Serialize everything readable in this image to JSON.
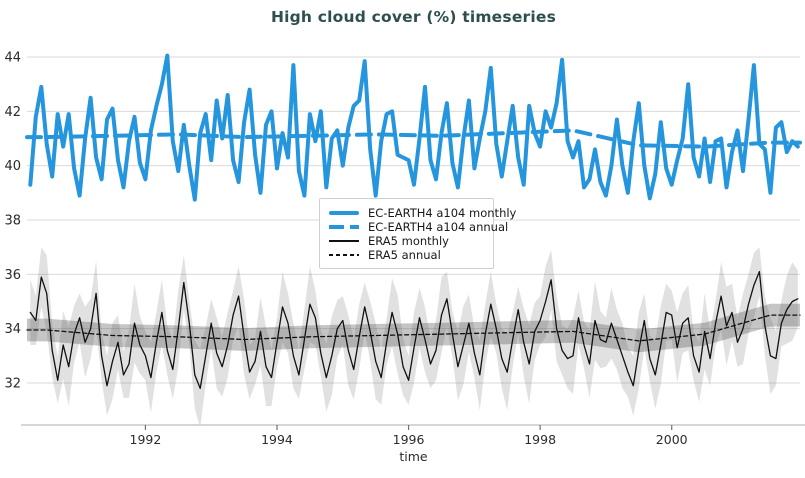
{
  "title": "High cloud cover (%) timeseries",
  "axes": {
    "x_label": "time",
    "x_ticks": [
      1992,
      1994,
      1996,
      1998,
      2000
    ],
    "y_ticks": [
      32,
      34,
      36,
      38,
      40,
      42,
      44
    ]
  },
  "colors": {
    "ecearth_blue": "#2596dd",
    "era5_black": "#111111",
    "grid": "#d9d9d9",
    "axis_spine": "#d6d6d6",
    "tick_mark": "#707070",
    "tick_text": "#2b2b2b",
    "title_text": "#2d4f4f",
    "band_light": "rgba(120,120,120,0.22)",
    "band_dark": "rgba(90,90,90,0.35)"
  },
  "chart_data": {
    "type": "line",
    "title": "High cloud cover (%) timeseries",
    "xlabel": "time",
    "ylabel": "",
    "grid": true,
    "legend_position": "center-left-inside",
    "xlim": [
      1990.2,
      2001.95
    ],
    "ylim": [
      30.4,
      44.5
    ],
    "x_start": 1990.25,
    "x_step": 0.0833333,
    "series": [
      {
        "id": "ecearth_monthly",
        "name": "EC-EARTH4 a104 monthly",
        "style": "solid",
        "width": 4,
        "color_key": "ecearth_blue",
        "values": [
          39.3,
          41.8,
          42.9,
          40.8,
          39.6,
          41.9,
          40.7,
          41.9,
          39.9,
          38.9,
          41.0,
          42.5,
          40.3,
          39.5,
          41.7,
          42.1,
          40.2,
          39.2,
          40.9,
          41.8,
          40.1,
          39.5,
          41.3,
          42.2,
          43.0,
          44.05,
          40.9,
          39.8,
          41.5,
          40.0,
          38.75,
          41.2,
          41.9,
          40.2,
          42.4,
          41.0,
          42.6,
          40.2,
          39.4,
          41.6,
          42.8,
          40.4,
          39.0,
          41.5,
          42.0,
          39.9,
          41.2,
          40.3,
          43.7,
          39.8,
          38.9,
          41.9,
          40.9,
          42.0,
          39.2,
          41.0,
          41.3,
          40.0,
          41.4,
          42.2,
          42.4,
          43.85,
          40.6,
          38.9,
          40.9,
          41.9,
          42.0,
          40.4,
          40.3,
          40.2,
          39.3,
          41.0,
          42.9,
          40.2,
          39.5,
          41.2,
          42.3,
          40.1,
          39.2,
          41.0,
          42.4,
          39.9,
          41.0,
          42.0,
          43.6,
          40.8,
          39.6,
          40.9,
          42.2,
          40.3,
          39.3,
          42.2,
          41.2,
          40.7,
          42.0,
          41.4,
          42.3,
          43.9,
          40.9,
          40.3,
          40.9,
          39.2,
          39.5,
          40.6,
          39.4,
          38.9,
          40.0,
          41.7,
          40.0,
          39.0,
          40.9,
          42.3,
          40.0,
          38.8,
          39.7,
          41.6,
          39.9,
          39.3,
          40.2,
          41.0,
          43.0,
          40.3,
          39.6,
          41.0,
          39.4,
          40.9,
          41.0,
          39.2,
          40.5,
          41.3,
          39.8,
          41.7,
          43.7,
          40.8,
          40.6,
          39.0,
          41.4,
          41.6,
          40.5,
          40.9,
          40.7
        ]
      },
      {
        "id": "ecearth_annual",
        "name": "EC-EARTH4 a104 annual",
        "style": "dashed",
        "width": 4,
        "color_key": "ecearth_blue",
        "x": [
          1990.5,
          1991.5,
          1992.5,
          1993.5,
          1994.5,
          1995.5,
          1996.5,
          1997.5,
          1998.5,
          1999.5,
          2000.5,
          2001.5
        ],
        "values": [
          41.05,
          41.1,
          41.15,
          41.05,
          41.1,
          41.15,
          41.1,
          41.2,
          41.3,
          40.75,
          40.7,
          40.85
        ]
      },
      {
        "id": "era5_monthly",
        "name": "ERA5 monthly",
        "style": "solid",
        "width": 1.3,
        "color_key": "era5_black",
        "values": [
          34.6,
          34.3,
          35.9,
          35.3,
          33.2,
          32.1,
          33.4,
          32.6,
          33.8,
          34.4,
          33.5,
          34.0,
          35.3,
          33.0,
          31.9,
          32.8,
          33.5,
          32.3,
          32.7,
          34.2,
          33.4,
          33.0,
          32.2,
          33.5,
          34.6,
          33.2,
          32.5,
          34.0,
          35.7,
          34.2,
          32.3,
          31.8,
          33.0,
          34.2,
          33.1,
          32.6,
          33.4,
          34.5,
          35.2,
          33.7,
          32.4,
          32.8,
          33.9,
          32.6,
          32.2,
          33.5,
          34.8,
          34.2,
          33.0,
          32.3,
          33.6,
          34.9,
          34.4,
          33.1,
          32.2,
          33.0,
          34.0,
          34.3,
          33.2,
          32.5,
          33.7,
          34.8,
          33.9,
          32.8,
          32.2,
          33.5,
          34.6,
          33.8,
          32.6,
          32.1,
          33.3,
          34.4,
          33.6,
          32.7,
          33.2,
          34.5,
          35.1,
          33.8,
          32.6,
          33.4,
          34.2,
          33.1,
          32.3,
          33.8,
          34.9,
          34.0,
          32.9,
          32.4,
          33.6,
          34.7,
          33.5,
          32.7,
          33.9,
          34.3,
          35.0,
          35.8,
          34.0,
          33.2,
          32.9,
          33.0,
          34.4,
          33.4,
          32.7,
          34.3,
          33.6,
          33.5,
          34.2,
          33.6,
          33.0,
          32.4,
          31.9,
          33.2,
          34.3,
          32.9,
          32.3,
          33.4,
          34.6,
          34.5,
          33.3,
          34.2,
          34.4,
          33.0,
          32.4,
          33.9,
          32.9,
          34.2,
          35.2,
          34.1,
          34.6,
          33.5,
          34.0,
          34.9,
          35.6,
          36.1,
          34.1,
          33.0,
          32.9,
          34.2,
          34.7,
          35.0,
          35.1
        ]
      },
      {
        "id": "era5_annual",
        "name": "ERA5 annual",
        "style": "dashed",
        "width": 1.3,
        "color_key": "era5_black",
        "x": [
          1990.5,
          1991.5,
          1992.5,
          1993.5,
          1994.5,
          1995.5,
          1996.5,
          1997.5,
          1998.5,
          1999.5,
          2000.5,
          2001.5
        ],
        "values": [
          33.95,
          33.75,
          33.7,
          33.6,
          33.7,
          33.75,
          33.8,
          33.85,
          33.9,
          33.55,
          33.8,
          34.5
        ]
      }
    ],
    "bands": [
      {
        "id": "era5_monthly_spread",
        "around": "era5_monthly",
        "halfwidth_pattern": [
          1.2,
          0.9,
          1.1,
          1.4,
          1.0,
          0.85,
          1.25,
          1.45,
          1.05,
          0.9,
          1.3,
          1.1
        ],
        "color_key": "band_light"
      },
      {
        "id": "era5_annual_spread",
        "around": "era5_annual",
        "halfwidth": 0.42,
        "color_key": "band_dark"
      }
    ]
  }
}
